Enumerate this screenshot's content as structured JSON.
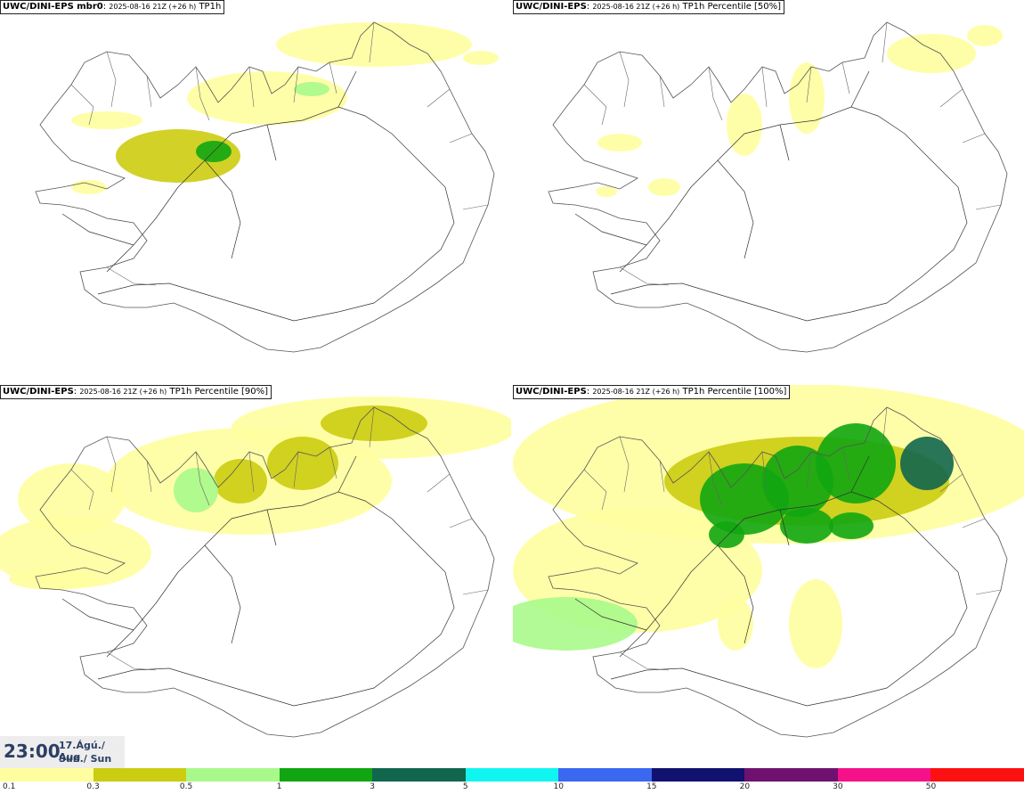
{
  "panels": [
    {
      "model": "UWC/DINI-EPS mbr0",
      "init": "2025-08-16 21Z (+26 h)",
      "field": "TP1h",
      "level": 1
    },
    {
      "model": "UWC/DINI-EPS",
      "init": "2025-08-16 21Z (+26 h)",
      "field": "TP1h Percentile [50%]",
      "level": 0
    },
    {
      "model": "UWC/DINI-EPS",
      "init": "2025-08-16 21Z (+26 h)",
      "field": "TP1h Percentile [90%]",
      "level": 2
    },
    {
      "model": "UWC/DINI-EPS",
      "init": "2025-08-16 21Z (+26 h)",
      "field": "TP1h Percentile [100%]",
      "level": 3
    }
  ],
  "valid_time": {
    "time": "23:00",
    "date_line1": "17.Ágú./ Aug",
    "date_line2": "Sun./ Sun"
  },
  "colorbar": {
    "labels": [
      "0.1",
      "0.3",
      "0.5",
      "1",
      "3",
      "5",
      "10",
      "15",
      "20",
      "30",
      "50"
    ],
    "colors": [
      "#fffe9e",
      "#cccc11",
      "#a8f98a",
      "#11a611",
      "#11664e",
      "#11f5f0",
      "#3a68f0",
      "#11116f",
      "#6f116f",
      "#f5118a",
      "#fb1111"
    ]
  }
}
